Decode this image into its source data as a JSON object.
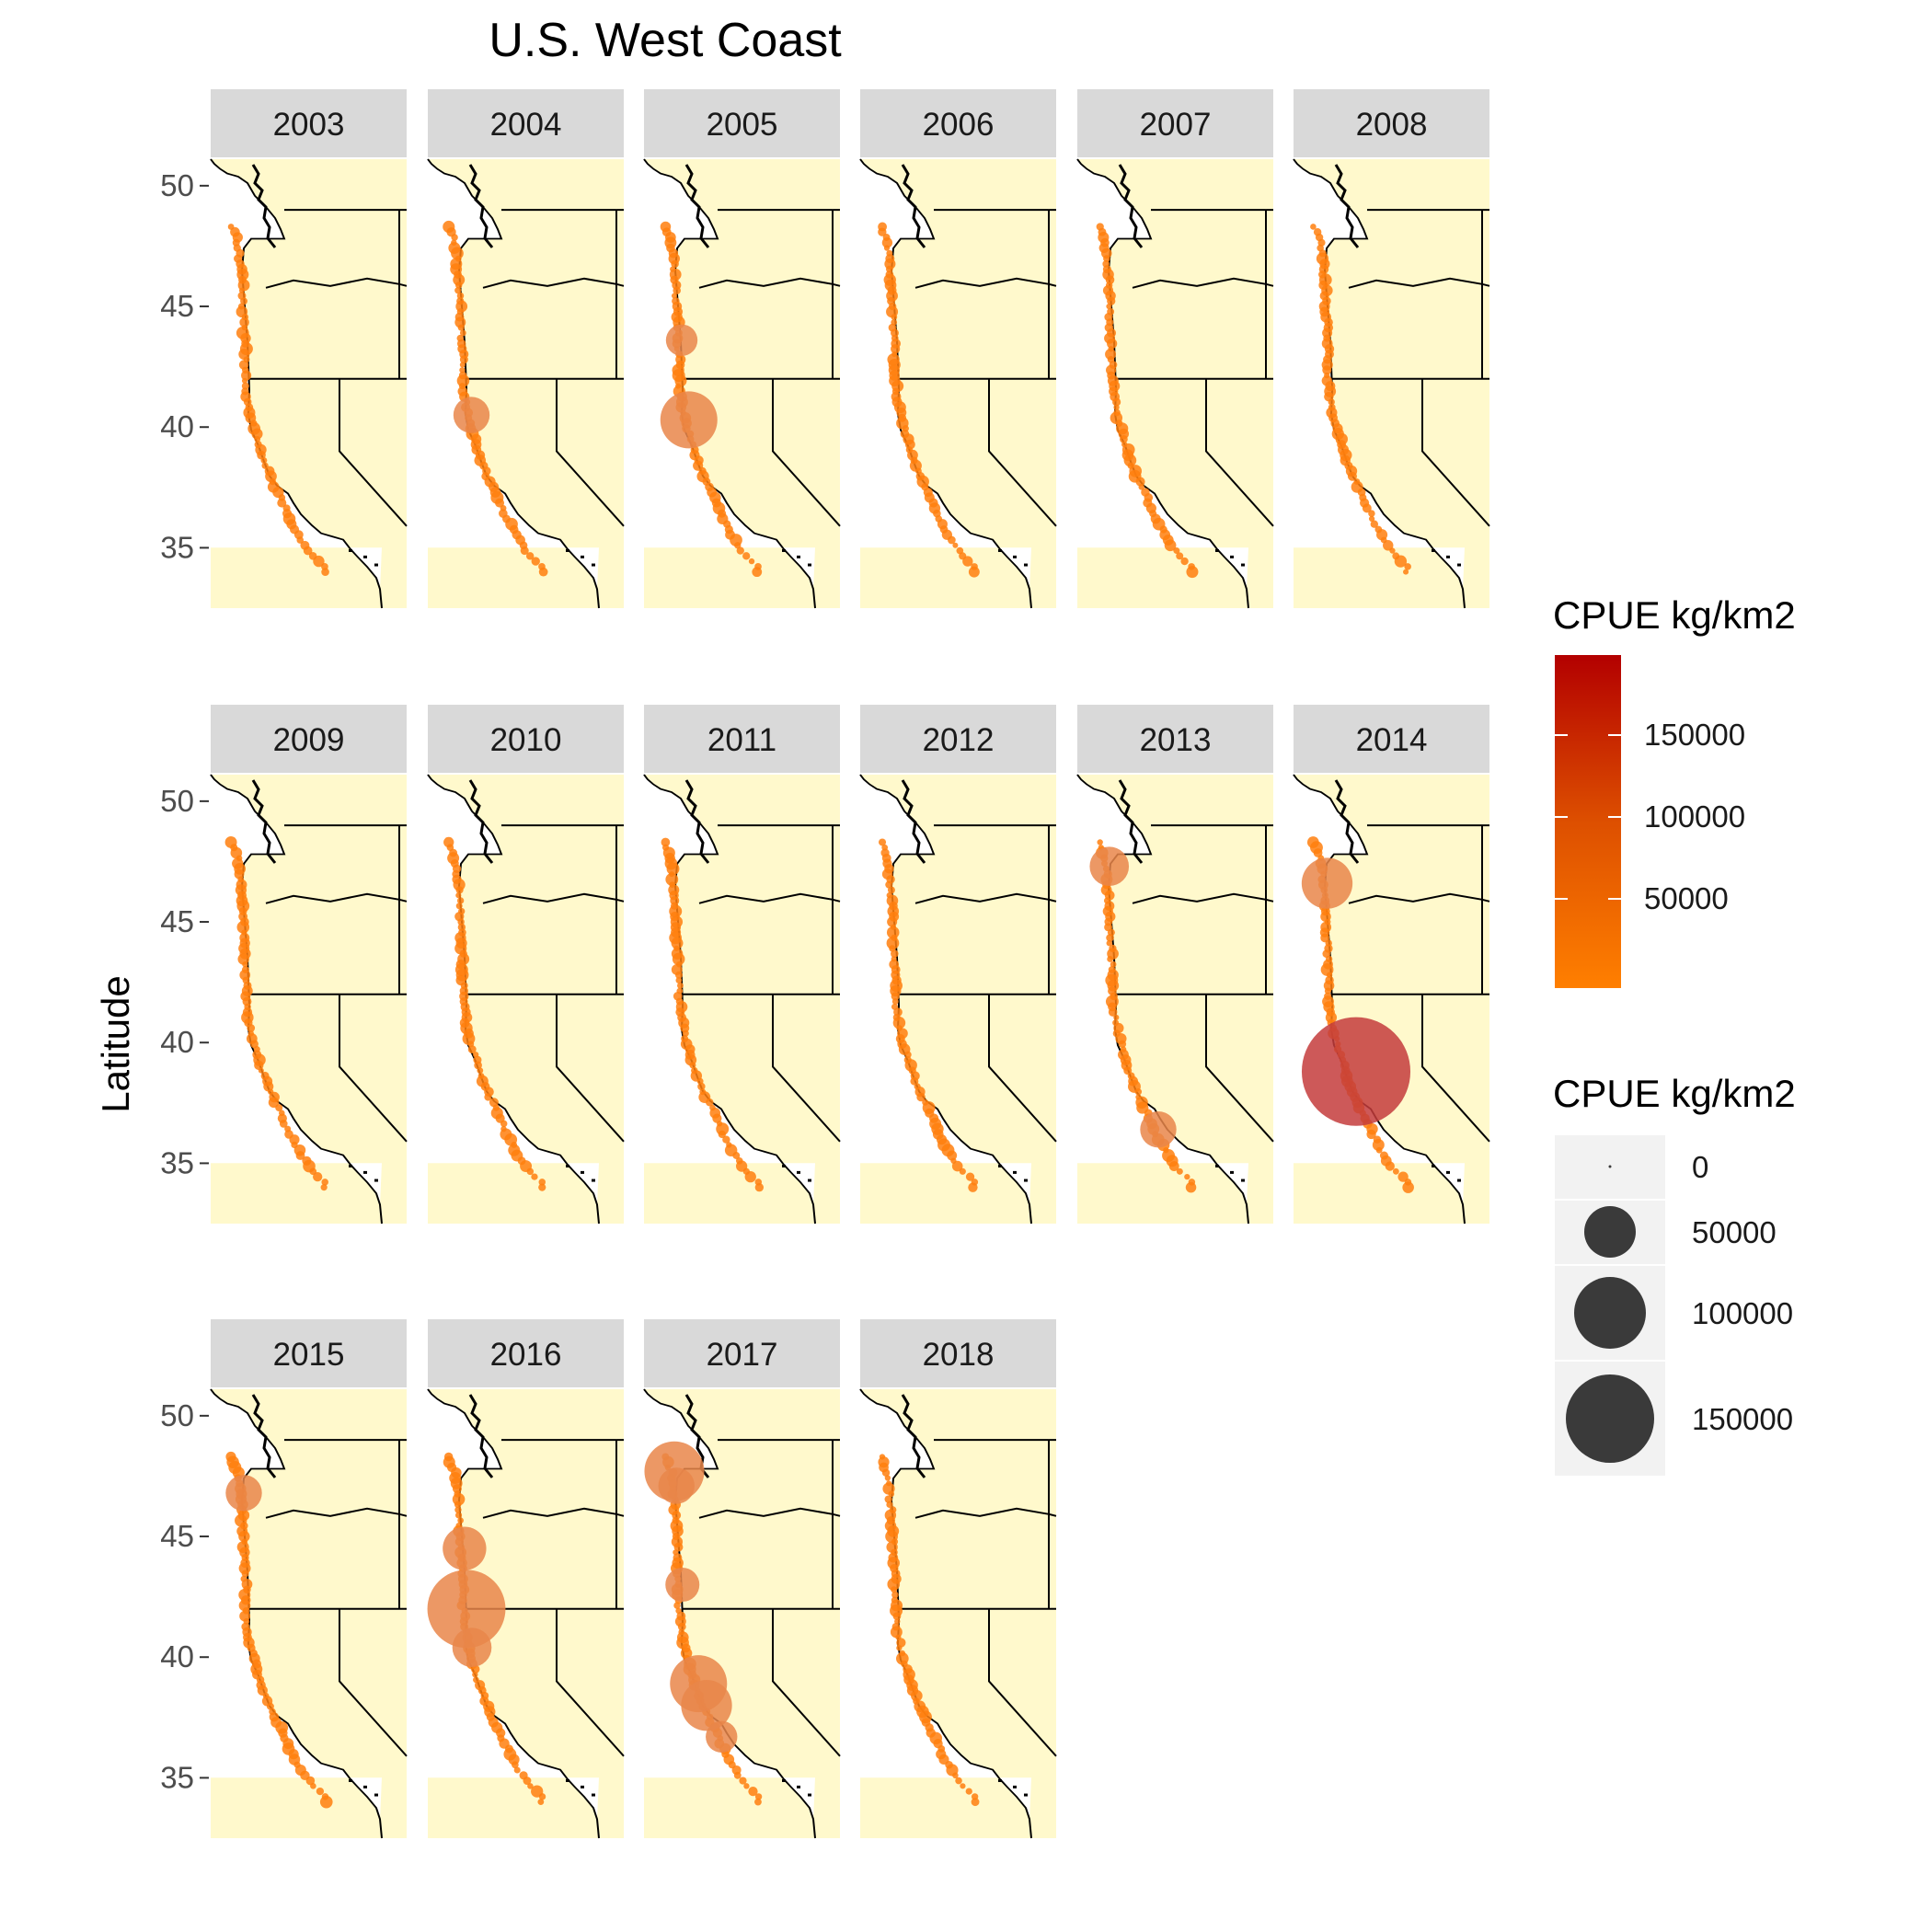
{
  "title": "U.S. West Coast",
  "ylabel": "Latitude",
  "legend_color": {
    "title": "CPUE kg/km2",
    "labels": [
      "150000",
      "100000",
      "50000"
    ],
    "color_low": "#ff7f00",
    "color_high": "#b30000"
  },
  "legend_size": {
    "title": "CPUE kg/km2",
    "labels": [
      "0",
      "50000",
      "100000",
      "150000"
    ]
  },
  "colors": {
    "land": "#fff9cc",
    "strip": "#d9d9d9",
    "point": "#ff7f0e",
    "large_point": "#e9864a",
    "peak_point": "#c43c3c"
  },
  "chart_data": {
    "type": "scatter",
    "facet_variable": "year",
    "panels": [
      "2003",
      "2004",
      "2005",
      "2006",
      "2007",
      "2008",
      "2009",
      "2010",
      "2011",
      "2012",
      "2013",
      "2014",
      "2015",
      "2016",
      "2017",
      "2018"
    ],
    "y_ticks": [
      "50",
      "45",
      "40",
      "35"
    ],
    "ylim": [
      32.5,
      51.1
    ],
    "large_points": [
      {
        "year": "2004",
        "lat": 40.5,
        "cpue": 12000
      },
      {
        "year": "2005",
        "lat": 40.3,
        "cpue": 40000
      },
      {
        "year": "2005",
        "lat": 43.6,
        "cpue": 8000
      },
      {
        "year": "2013",
        "lat": 47.3,
        "cpue": 15000
      },
      {
        "year": "2013",
        "lat": 36.4,
        "cpue": 12000
      },
      {
        "year": "2014",
        "lat": 46.6,
        "cpue": 30000
      },
      {
        "year": "2014",
        "lat": 38.8,
        "cpue": 180000
      },
      {
        "year": "2015",
        "lat": 46.8,
        "cpue": 12000
      },
      {
        "year": "2016",
        "lat": 44.5,
        "cpue": 20000
      },
      {
        "year": "2016",
        "lat": 42.0,
        "cpue": 85000
      },
      {
        "year": "2016",
        "lat": 40.4,
        "cpue": 15000
      },
      {
        "year": "2017",
        "lat": 47.7,
        "cpue": 45000
      },
      {
        "year": "2017",
        "lat": 47.1,
        "cpue": 12000
      },
      {
        "year": "2017",
        "lat": 43.0,
        "cpue": 10000
      },
      {
        "year": "2017",
        "lat": 38.9,
        "cpue": 40000
      },
      {
        "year": "2017",
        "lat": 38.0,
        "cpue": 30000
      },
      {
        "year": "2017",
        "lat": 36.7,
        "cpue": 8000
      }
    ]
  }
}
